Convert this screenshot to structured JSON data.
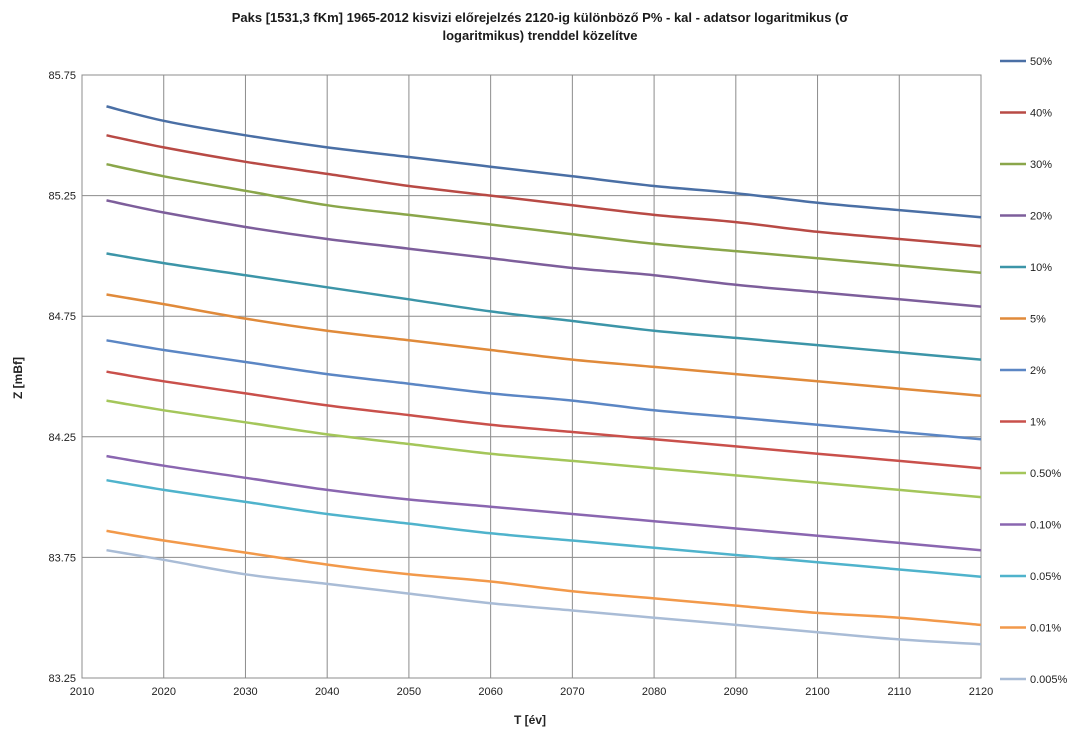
{
  "chart_data": {
    "type": "line",
    "title_lines": [
      "Paks [1531,3 fKm] 1965-2012 kisvizi előrejelzés 2120-ig különböző P% - kal  -  adatsor logaritmikus (σ",
      "logaritmikus) trenddel közelítve"
    ],
    "xlabel": "T [év]",
    "ylabel": "Z [mBf]",
    "xlim": [
      2010,
      2120
    ],
    "ylim": [
      83.25,
      85.75
    ],
    "x_ticks": [
      2010,
      2020,
      2030,
      2040,
      2050,
      2060,
      2070,
      2080,
      2090,
      2100,
      2110,
      2120
    ],
    "y_ticks": [
      83.25,
      83.75,
      84.25,
      84.75,
      85.25,
      85.75
    ],
    "y_tick_labels": [
      "83.25",
      "83.75",
      "84.25",
      "84.75",
      "85.25",
      "85.75"
    ],
    "grid": true,
    "legend_position": "right",
    "x": [
      2013,
      2020,
      2030,
      2040,
      2050,
      2060,
      2070,
      2080,
      2090,
      2100,
      2110,
      2120
    ],
    "series": [
      {
        "name": "50%",
        "color": "#4a6fa5",
        "values": [
          85.62,
          85.56,
          85.5,
          85.45,
          85.41,
          85.37,
          85.33,
          85.29,
          85.26,
          85.22,
          85.19,
          85.16
        ]
      },
      {
        "name": "40%",
        "color": "#b84a45",
        "values": [
          85.5,
          85.45,
          85.39,
          85.34,
          85.29,
          85.25,
          85.21,
          85.17,
          85.14,
          85.1,
          85.07,
          85.04
        ]
      },
      {
        "name": "30%",
        "color": "#8aa64a",
        "values": [
          85.38,
          85.33,
          85.27,
          85.21,
          85.17,
          85.13,
          85.09,
          85.05,
          85.02,
          84.99,
          84.96,
          84.93
        ]
      },
      {
        "name": "20%",
        "color": "#7d5e9b",
        "values": [
          85.23,
          85.18,
          85.12,
          85.07,
          85.03,
          84.99,
          84.95,
          84.92,
          84.88,
          84.85,
          84.82,
          84.79
        ]
      },
      {
        "name": "10%",
        "color": "#3c95a8",
        "values": [
          85.01,
          84.97,
          84.92,
          84.87,
          84.82,
          84.77,
          84.73,
          84.69,
          84.66,
          84.63,
          84.6,
          84.57
        ]
      },
      {
        "name": "5%",
        "color": "#e08a3a",
        "values": [
          84.84,
          84.8,
          84.74,
          84.69,
          84.65,
          84.61,
          84.57,
          84.54,
          84.51,
          84.48,
          84.45,
          84.42
        ]
      },
      {
        "name": "2%",
        "color": "#5b86c4",
        "values": [
          84.65,
          84.61,
          84.56,
          84.51,
          84.47,
          84.43,
          84.4,
          84.36,
          84.33,
          84.3,
          84.27,
          84.24
        ]
      },
      {
        "name": "1%",
        "color": "#c9504b",
        "values": [
          84.52,
          84.48,
          84.43,
          84.38,
          84.34,
          84.3,
          84.27,
          84.24,
          84.21,
          84.18,
          84.15,
          84.12
        ]
      },
      {
        "name": "0.50%",
        "color": "#a4c65a",
        "values": [
          84.4,
          84.36,
          84.31,
          84.26,
          84.22,
          84.18,
          84.15,
          84.12,
          84.09,
          84.06,
          84.03,
          84.0
        ]
      },
      {
        "name": "0.10%",
        "color": "#8a66b0",
        "values": [
          84.17,
          84.13,
          84.08,
          84.03,
          83.99,
          83.96,
          83.93,
          83.9,
          83.87,
          83.84,
          83.81,
          83.78
        ]
      },
      {
        "name": "0.05%",
        "color": "#4fb3cc",
        "values": [
          84.07,
          84.03,
          83.98,
          83.93,
          83.89,
          83.85,
          83.82,
          83.79,
          83.76,
          83.73,
          83.7,
          83.67
        ]
      },
      {
        "name": "0.01%",
        "color": "#f2994a",
        "values": [
          83.86,
          83.82,
          83.77,
          83.72,
          83.68,
          83.65,
          83.61,
          83.58,
          83.55,
          83.52,
          83.5,
          83.47
        ]
      },
      {
        "name": "0.005%",
        "color": "#a9bcd6",
        "values": [
          83.78,
          83.74,
          83.68,
          83.64,
          83.6,
          83.56,
          83.53,
          83.5,
          83.47,
          83.44,
          83.41,
          83.39
        ]
      }
    ]
  }
}
